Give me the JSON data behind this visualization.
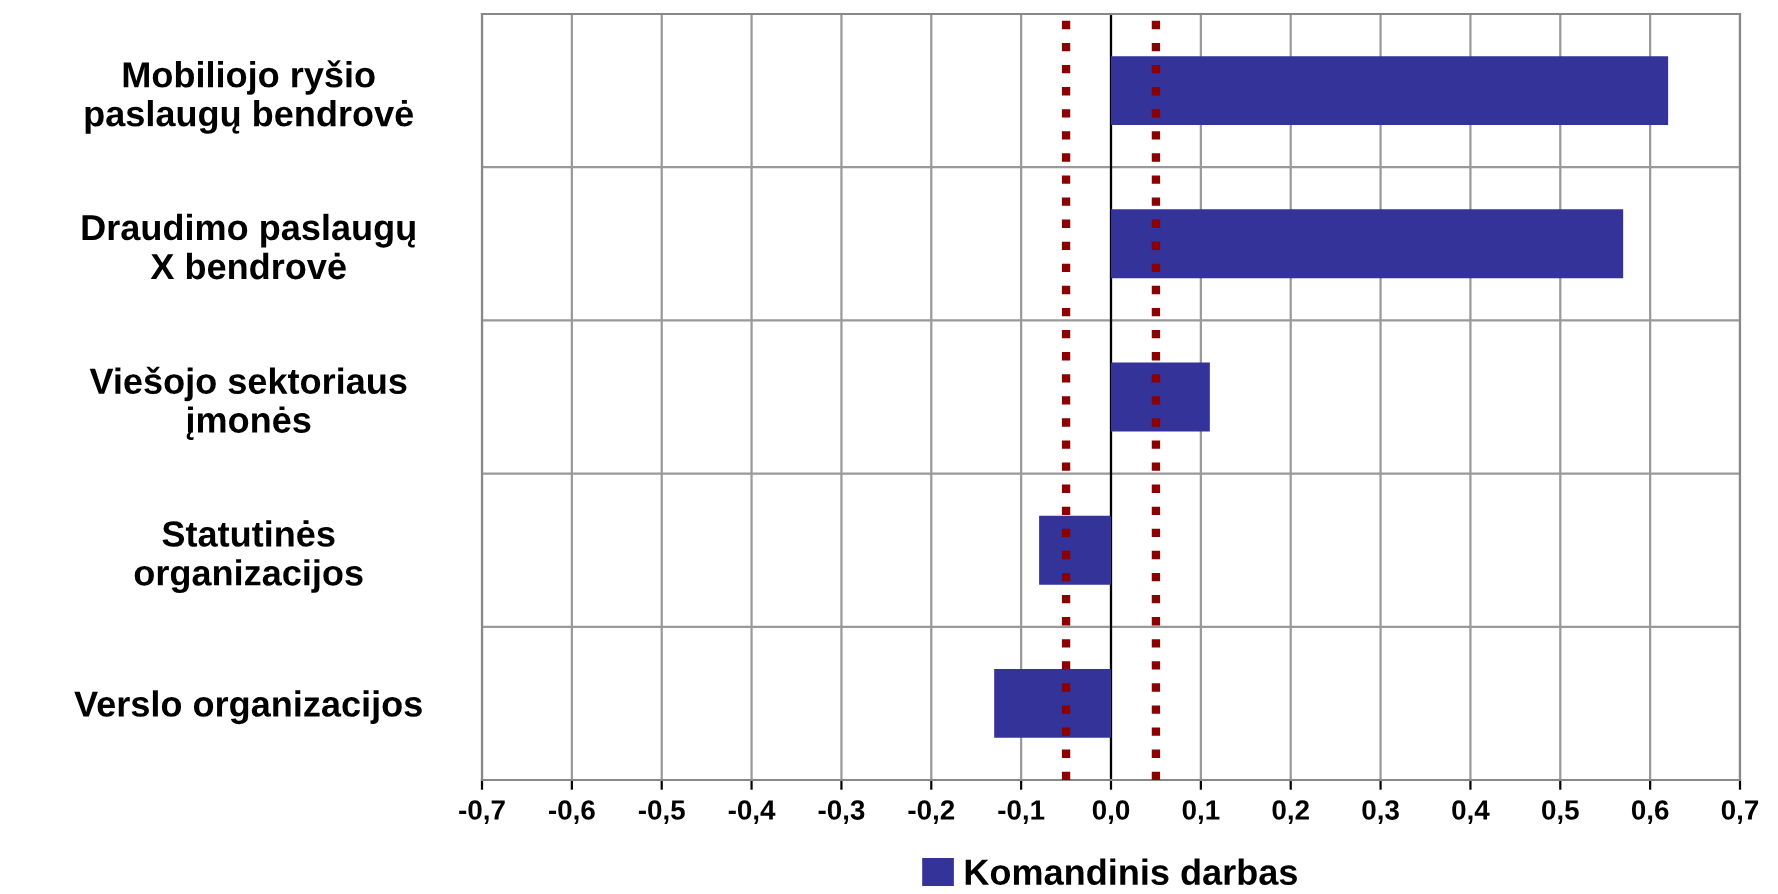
{
  "chart_data": {
    "type": "bar",
    "orientation": "horizontal",
    "categories": [
      "Mobiliojo ryšio\npaslaugų bendrovė",
      "Draudimo paslaugų\nX bendrovė",
      "Viešojo sektoriaus\nįmonės",
      "Statutinės\norganizacijos",
      "Verslo organizacijos"
    ],
    "series": [
      {
        "name": "Komandinis darbas",
        "color": "#333399",
        "values": [
          0.62,
          0.57,
          0.11,
          -0.08,
          -0.13
        ]
      }
    ],
    "xlim": [
      -0.7,
      0.7
    ],
    "xticks": [
      {
        "value": -0.7,
        "label": "-0,7"
      },
      {
        "value": -0.6,
        "label": "-0,6"
      },
      {
        "value": -0.5,
        "label": "-0,5"
      },
      {
        "value": -0.4,
        "label": "-0,4"
      },
      {
        "value": -0.3,
        "label": "-0,3"
      },
      {
        "value": -0.2,
        "label": "-0,2"
      },
      {
        "value": -0.1,
        "label": "-0,1"
      },
      {
        "value": 0,
        "label": "0,0"
      },
      {
        "value": 0.1,
        "label": "0,1"
      },
      {
        "value": 0.2,
        "label": "0,2"
      },
      {
        "value": 0.3,
        "label": "0,3"
      },
      {
        "value": 0.4,
        "label": "0,4"
      },
      {
        "value": 0.5,
        "label": "0,5"
      },
      {
        "value": 0.6,
        "label": "0,6"
      },
      {
        "value": 0.7,
        "label": "0,7"
      }
    ],
    "ref_lines": [
      {
        "axis": "x",
        "value": -0.05,
        "color": "#8b0000",
        "line_style": "dotted"
      },
      {
        "axis": "x",
        "value": 0.05,
        "color": "#8b0000",
        "line_style": "dotted"
      }
    ],
    "grid": true,
    "legend": "bottom"
  }
}
